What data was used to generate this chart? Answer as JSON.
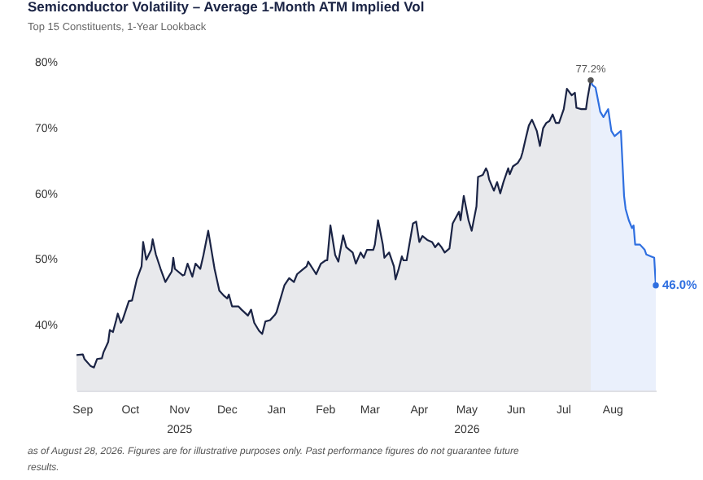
{
  "chart_data": {
    "type": "area",
    "title": "Semiconductor Volatility – Average 1-Month ATM Implied Vol",
    "subtitle": "Top 15 Constituents, 1-Year Lookback",
    "xlim": [
      "2025-08-28",
      "2026-08-28"
    ],
    "xticks": [
      {
        "value": "2025-09-01",
        "label": "Sep"
      },
      {
        "value": "2025-10-01",
        "label": "Oct"
      },
      {
        "value": "2025-11-01",
        "label": "Nov 2025"
      },
      {
        "value": "2025-12-01",
        "label": "Dec"
      },
      {
        "value": "2026-01-01",
        "label": "Jan"
      },
      {
        "value": "2026-02-01",
        "label": "Feb"
      },
      {
        "value": "2026-03-01",
        "label": "Mar"
      },
      {
        "value": "2026-04-01",
        "label": "Apr"
      },
      {
        "value": "2026-05-01",
        "label": "May 2026"
      },
      {
        "value": "2026-06-01",
        "label": "Jun"
      },
      {
        "value": "2026-07-01",
        "label": "Jul"
      },
      {
        "value": "2026-08-01",
        "label": "Aug"
      }
    ],
    "ylim": [
      30,
      80
    ],
    "yticks": [
      {
        "value": 40,
        "label": "40%"
      },
      {
        "value": 50,
        "label": "50%"
      },
      {
        "value": 60,
        "label": "60%"
      },
      {
        "value": 70,
        "label": "70%"
      },
      {
        "value": 80,
        "label": "80%"
      }
    ],
    "grid": false,
    "series": [
      {
        "color": "#1b2445",
        "x": [
          "2025-08-28",
          "2025-09-01",
          "2025-09-02",
          "2025-09-06",
          "2025-09-08",
          "2025-09-10",
          "2025-09-13",
          "2025-09-14",
          "2025-09-17",
          "2025-09-18",
          "2025-09-20",
          "2025-09-22",
          "2025-09-23",
          "2025-09-25",
          "2025-09-26",
          "2025-09-30",
          "2025-10-02",
          "2025-10-05",
          "2025-10-08",
          "2025-10-09",
          "2025-10-11",
          "2025-10-14",
          "2025-10-15",
          "2025-10-17",
          "2025-10-20",
          "2025-10-23",
          "2025-10-27",
          "2025-10-28",
          "2025-10-29",
          "2025-11-03",
          "2025-11-04",
          "2025-11-06",
          "2025-11-09",
          "2025-11-11",
          "2025-11-14",
          "2025-11-16",
          "2025-11-19",
          "2025-11-21",
          "2025-11-23",
          "2025-11-26",
          "2025-11-29",
          "2025-12-01",
          "2025-12-02",
          "2025-12-04",
          "2025-12-08",
          "2025-12-10",
          "2025-12-14",
          "2025-12-16",
          "2025-12-18",
          "2025-12-21",
          "2025-12-23",
          "2025-12-25",
          "2025-12-28",
          "2025-12-31",
          "2026-01-01",
          "2026-01-06",
          "2026-01-09",
          "2026-01-12",
          "2026-01-14",
          "2026-01-17",
          "2026-01-20",
          "2026-01-21",
          "2026-01-25",
          "2026-01-26",
          "2026-01-29",
          "2026-02-01",
          "2026-02-02",
          "2026-02-04",
          "2026-02-07",
          "2026-02-09",
          "2026-02-12",
          "2026-02-14",
          "2026-02-18",
          "2026-02-20",
          "2026-02-23",
          "2026-02-25",
          "2026-02-27",
          "2026-03-03",
          "2026-03-04",
          "2026-03-06",
          "2026-03-09",
          "2026-03-10",
          "2026-03-13",
          "2026-03-16",
          "2026-03-17",
          "2026-03-19",
          "2026-03-21",
          "2026-03-22",
          "2026-03-24",
          "2026-03-26",
          "2026-03-28",
          "2026-03-30",
          "2026-04-01",
          "2026-04-03",
          "2026-04-06",
          "2026-04-09",
          "2026-04-11",
          "2026-04-13",
          "2026-04-15",
          "2026-04-17",
          "2026-04-20",
          "2026-04-22",
          "2026-04-26",
          "2026-04-27",
          "2026-04-29",
          "2026-05-02",
          "2026-05-04",
          "2026-05-07",
          "2026-05-08",
          "2026-05-11",
          "2026-05-13",
          "2026-05-14",
          "2026-05-15",
          "2026-05-18",
          "2026-05-20",
          "2026-05-22",
          "2026-05-24",
          "2026-05-27",
          "2026-05-28",
          "2026-05-30",
          "2026-06-02",
          "2026-06-04",
          "2026-06-05",
          "2026-06-07",
          "2026-06-09",
          "2026-06-11",
          "2026-06-14",
          "2026-06-16",
          "2026-06-18",
          "2026-06-20",
          "2026-06-22",
          "2026-06-24",
          "2026-06-26",
          "2026-06-28",
          "2026-07-01",
          "2026-07-03",
          "2026-07-06",
          "2026-07-08",
          "2026-07-09",
          "2026-07-12",
          "2026-07-15",
          "2026-07-16",
          "2026-07-18"
        ],
        "values": [
          35.4,
          35.5,
          34.8,
          33.7,
          33.5,
          34.8,
          34.9,
          35.8,
          37.4,
          39.2,
          38.9,
          40.7,
          41.7,
          40.3,
          40.7,
          43.6,
          43.7,
          46.9,
          48.9,
          52.6,
          49.9,
          51.4,
          53.0,
          50.7,
          48.5,
          46.5,
          48.1,
          50.2,
          48.5,
          47.5,
          47.6,
          49.3,
          47.3,
          49.3,
          48.5,
          50.6,
          54.3,
          51.4,
          48.5,
          45.2,
          44.4,
          44.0,
          44.6,
          42.8,
          42.8,
          42.3,
          41.4,
          42.3,
          40.3,
          39.1,
          38.6,
          40.5,
          40.7,
          41.5,
          41.9,
          46.0,
          47.1,
          46.5,
          47.7,
          48.3,
          48.9,
          49.6,
          48.1,
          47.7,
          49.3,
          49.8,
          49.8,
          55.1,
          50.6,
          49.6,
          53.6,
          51.8,
          51.0,
          49.3,
          51.0,
          50.2,
          51.4,
          51.4,
          52.2,
          55.9,
          52.2,
          50.2,
          51.0,
          48.9,
          46.9,
          48.5,
          50.4,
          49.8,
          49.8,
          52.6,
          55.4,
          55.7,
          52.6,
          53.5,
          52.9,
          52.6,
          51.8,
          52.4,
          51.8,
          51.0,
          51.6,
          55.4,
          57.2,
          55.9,
          59.6,
          55.9,
          54.3,
          58.0,
          62.5,
          62.8,
          63.8,
          63.3,
          62.1,
          60.4,
          61.7,
          60.0,
          61.7,
          63.8,
          62.9,
          64.1,
          64.6,
          65.4,
          66.2,
          68.3,
          70.3,
          71.2,
          69.5,
          67.2,
          69.9,
          70.7,
          71.0,
          72.0,
          70.7,
          70.7,
          72.8,
          75.9,
          74.9,
          75.3,
          73.0,
          72.8,
          72.8,
          74.5,
          77.2
        ]
      },
      {
        "color": "#2f6fe0",
        "x": [
          "2026-07-18",
          "2026-07-19",
          "2026-07-21",
          "2026-07-22",
          "2026-07-24",
          "2026-07-26",
          "2026-07-29",
          "2026-07-31",
          "2026-08-02",
          "2026-08-04",
          "2026-08-06",
          "2026-08-07",
          "2026-08-08",
          "2026-08-09",
          "2026-08-11",
          "2026-08-13",
          "2026-08-14",
          "2026-08-15",
          "2026-08-18",
          "2026-08-21",
          "2026-08-22",
          "2026-08-25",
          "2026-08-27",
          "2026-08-28"
        ],
        "values": [
          77.2,
          76.5,
          76.1,
          74.9,
          72.4,
          71.6,
          72.8,
          69.5,
          68.7,
          69.1,
          69.5,
          64.6,
          59.6,
          57.6,
          55.9,
          54.7,
          55.1,
          52.2,
          52.2,
          51.4,
          50.7,
          50.4,
          50.2,
          46.0
        ]
      }
    ],
    "annotations": [
      {
        "text": "77.2%",
        "x": "2026-07-18",
        "y": 77.2
      },
      {
        "text": "46.0%",
        "x": "2026-08-28",
        "y": 46.0
      },
      "as of August 28, 2026. Figures are for illustrative purposes only. Past performance figures do not guarantee future results."
    ]
  }
}
